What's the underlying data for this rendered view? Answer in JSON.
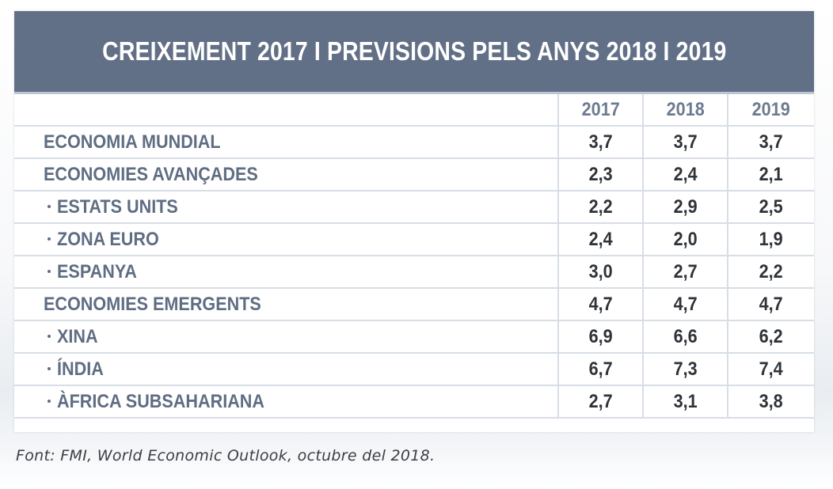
{
  "title": "CREIXEMENT 2017 I PREVISIONS PELS ANYS 2018 I 2019",
  "colors": {
    "banner": "#617086",
    "label_text": "#5f6d83",
    "value_text": "#2f3338",
    "grid": "#d7dee6"
  },
  "table": {
    "headers": [
      "2017",
      "2018",
      "2019"
    ],
    "rows": [
      {
        "label": "ECONOMIA MUNDIAL",
        "v2017": "3,7",
        "v2018": "3,7",
        "v2019": "3,7"
      },
      {
        "label": "ECONOMIES AVANÇADES",
        "v2017": "2,3",
        "v2018": "2,4",
        "v2019": "2,1"
      },
      {
        "label": "ESTATS UNITS",
        "v2017": "2,2",
        "v2018": "2,9",
        "v2019": "2,5"
      },
      {
        "label": "ZONA EURO",
        "v2017": "2,4",
        "v2018": "2,0",
        "v2019": "1,9"
      },
      {
        "label": "ESPANYA",
        "v2017": "3,0",
        "v2018": "2,7",
        "v2019": "2,2"
      },
      {
        "label": "ECONOMIES EMERGENTS",
        "v2017": "4,7",
        "v2018": "4,7",
        "v2019": "4,7"
      },
      {
        "label": "XINA",
        "v2017": "6,9",
        "v2018": "6,6",
        "v2019": "6,2"
      },
      {
        "label": "ÍNDIA",
        "v2017": "6,7",
        "v2018": "7,3",
        "v2019": "7,4"
      },
      {
        "label": "ÀFRICA SUBSAHARIANA",
        "v2017": "2,7",
        "v2018": "3,1",
        "v2019": "3,8"
      }
    ]
  },
  "source": "Font: FMI, World Economic Outlook, octubre del 2018."
}
